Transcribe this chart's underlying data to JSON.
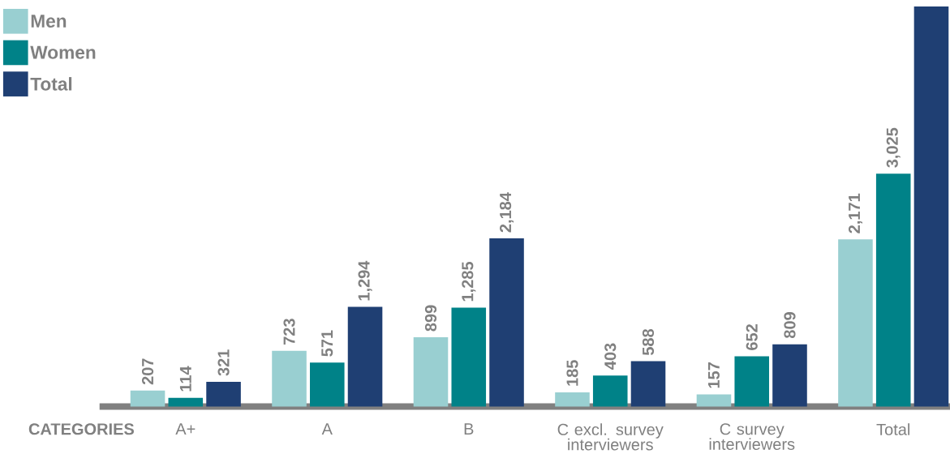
{
  "chart_data": {
    "type": "bar",
    "xlabel": "CATEGORIES",
    "legend": "top left",
    "categories": [
      "A+",
      "A",
      "B",
      "C excl. survey interviewers",
      "C survey interviewers",
      "Total"
    ],
    "series": [
      {
        "name": "Men",
        "color": "#99cfd1",
        "values": [
          207,
          723,
          899,
          185,
          157,
          2171
        ],
        "value_labels": [
          "207",
          "723",
          "899",
          "185",
          "157",
          "2,171"
        ]
      },
      {
        "name": "Women",
        "color": "#008288",
        "values": [
          114,
          571,
          1285,
          403,
          652,
          3025
        ],
        "value_labels": [
          "114",
          "571",
          "1,285",
          "403",
          "652",
          "3,025"
        ]
      },
      {
        "name": "Total",
        "color": "#1f3f73",
        "values": [
          321,
          1294,
          2184,
          588,
          809,
          5196
        ],
        "value_labels": [
          "321",
          "1,294",
          "2,184",
          "588",
          "809",
          null
        ]
      }
    ]
  }
}
